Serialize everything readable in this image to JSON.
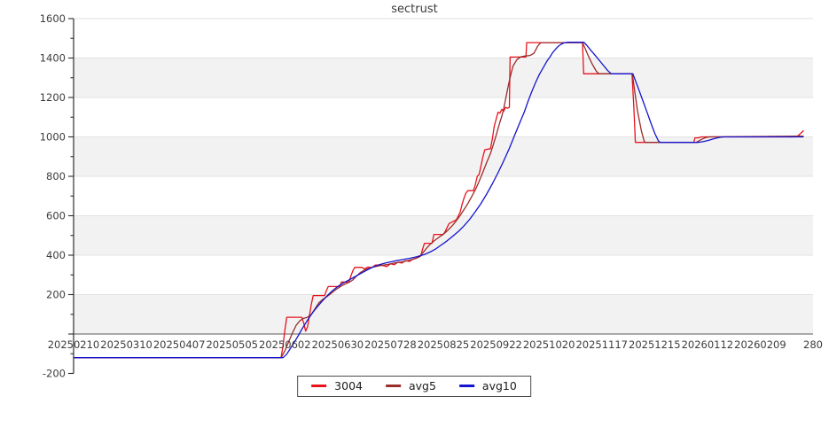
{
  "title": "sectrust",
  "colors": {
    "band": "#f2f2f2",
    "grid": "#e2e2e2",
    "zero_line": "#7a7a7a",
    "axis": "#2e2e2e",
    "tick_text": "#3c3c3c"
  },
  "legend": {
    "items": [
      {
        "label": "3004",
        "color": "#e8131c"
      },
      {
        "label": "avg5",
        "color": "#9a2c2a"
      },
      {
        "label": "avg10",
        "color": "#1414cf"
      }
    ]
  },
  "chart_data": {
    "type": "line",
    "title": "sectrust",
    "legend_position": "bottom-center",
    "x_axis": {
      "unit": "days since first date, 28 days per labeled tick",
      "tick_days": [
        0,
        28,
        56,
        84,
        112,
        140,
        168,
        196,
        224,
        252,
        280,
        308,
        336,
        364,
        392
      ],
      "tick_labels": [
        "20250210",
        "20250310",
        "20250407",
        "20250505",
        "20250602",
        "20250630",
        "20250728",
        "20250825",
        "20250922",
        "20251020",
        "20251117",
        "20251215",
        "20260112",
        "20260209",
        "280"
      ]
    },
    "y_axis": {
      "range": [
        -200,
        1600
      ],
      "major_step": 200,
      "minor_step": 100,
      "labeled_values": [
        1600,
        1400,
        1200,
        1000,
        800,
        600,
        400,
        200,
        -200
      ]
    },
    "gray_bands": [
      [
        0,
        200
      ],
      [
        400,
        600
      ],
      [
        800,
        1000
      ],
      [
        1200,
        1400
      ]
    ],
    "series": [
      {
        "name": "3004",
        "color": "#e8131c",
        "points": [
          [
            0,
            -120
          ],
          [
            110,
            -120
          ],
          [
            111,
            -60
          ],
          [
            112,
            20
          ],
          [
            113,
            85
          ],
          [
            121,
            85
          ],
          [
            122,
            55
          ],
          [
            123,
            15
          ],
          [
            124,
            35
          ],
          [
            125,
            90
          ],
          [
            126,
            150
          ],
          [
            127,
            195
          ],
          [
            133,
            195
          ],
          [
            134,
            220
          ],
          [
            135,
            241
          ],
          [
            141,
            241
          ],
          [
            142,
            264
          ],
          [
            146,
            264
          ],
          [
            147,
            295
          ],
          [
            148,
            320
          ],
          [
            149,
            338
          ],
          [
            153,
            338
          ],
          [
            154,
            330
          ],
          [
            156,
            340
          ],
          [
            158,
            336
          ],
          [
            160,
            350
          ],
          [
            163,
            350
          ],
          [
            166,
            342
          ],
          [
            168,
            356
          ],
          [
            170,
            352
          ],
          [
            172,
            364
          ],
          [
            174,
            360
          ],
          [
            176,
            372
          ],
          [
            178,
            368
          ],
          [
            180,
            380
          ],
          [
            182,
            386
          ],
          [
            184,
            395
          ],
          [
            185,
            430
          ],
          [
            186,
            460
          ],
          [
            190,
            460
          ],
          [
            191,
            505
          ],
          [
            196,
            505
          ],
          [
            197,
            520
          ],
          [
            199,
            560
          ],
          [
            201,
            570
          ],
          [
            203,
            580
          ],
          [
            205,
            620
          ],
          [
            206,
            660
          ],
          [
            207,
            690
          ],
          [
            208,
            715
          ],
          [
            209,
            727
          ],
          [
            212,
            727
          ],
          [
            213,
            760
          ],
          [
            214,
            800
          ],
          [
            215,
            810
          ],
          [
            216,
            855
          ],
          [
            217,
            900
          ],
          [
            218,
            935
          ],
          [
            221,
            940
          ],
          [
            222,
            990
          ],
          [
            223,
            1053
          ],
          [
            224,
            1090
          ],
          [
            225,
            1125
          ],
          [
            226,
            1120
          ],
          [
            227,
            1140
          ],
          [
            228,
            1130
          ],
          [
            229,
            1150
          ],
          [
            230,
            1145
          ],
          [
            231,
            1150
          ],
          [
            231.4,
            1405
          ],
          [
            239.8,
            1405
          ],
          [
            240.2,
            1478
          ],
          [
            269.8,
            1478
          ],
          [
            270.4,
            1320
          ],
          [
            296,
            1320
          ],
          [
            297,
            1150
          ],
          [
            297.8,
            972
          ],
          [
            328.8,
            972
          ],
          [
            329.4,
            995
          ],
          [
            331,
            995
          ],
          [
            333,
            1000
          ],
          [
            382,
            1000
          ],
          [
            384,
            1005
          ],
          [
            387,
            1032
          ]
        ]
      },
      {
        "name": "avg5",
        "color": "#9a2c2a",
        "points": [
          [
            0,
            -120
          ],
          [
            110,
            -120
          ],
          [
            112,
            -85
          ],
          [
            114,
            -40
          ],
          [
            116,
            5
          ],
          [
            118,
            45
          ],
          [
            120,
            68
          ],
          [
            122,
            80
          ],
          [
            124,
            85
          ],
          [
            126,
            100
          ],
          [
            128,
            128
          ],
          [
            130,
            158
          ],
          [
            132,
            175
          ],
          [
            134,
            188
          ],
          [
            136,
            202
          ],
          [
            138,
            218
          ],
          [
            140,
            232
          ],
          [
            142,
            244
          ],
          [
            144,
            254
          ],
          [
            146,
            262
          ],
          [
            148,
            274
          ],
          [
            150,
            294
          ],
          [
            152,
            312
          ],
          [
            155,
            328
          ],
          [
            158,
            338
          ],
          [
            162,
            346
          ],
          [
            166,
            352
          ],
          [
            170,
            360
          ],
          [
            174,
            366
          ],
          [
            178,
            374
          ],
          [
            181,
            382
          ],
          [
            183,
            390
          ],
          [
            185,
            410
          ],
          [
            187,
            434
          ],
          [
            189,
            455
          ],
          [
            191,
            472
          ],
          [
            193,
            486
          ],
          [
            195,
            500
          ],
          [
            197,
            514
          ],
          [
            199,
            532
          ],
          [
            201,
            552
          ],
          [
            203,
            576
          ],
          [
            205,
            602
          ],
          [
            207,
            632
          ],
          [
            209,
            662
          ],
          [
            211,
            696
          ],
          [
            213,
            732
          ],
          [
            215,
            775
          ],
          [
            217,
            822
          ],
          [
            219,
            870
          ],
          [
            221,
            916
          ],
          [
            222,
            945
          ],
          [
            223,
            976
          ],
          [
            224,
            1008
          ],
          [
            225,
            1042
          ],
          [
            226,
            1074
          ],
          [
            227,
            1105
          ],
          [
            228,
            1142
          ],
          [
            229,
            1190
          ],
          [
            230,
            1238
          ],
          [
            231,
            1285
          ],
          [
            232,
            1325
          ],
          [
            233,
            1360
          ],
          [
            235,
            1392
          ],
          [
            237,
            1406
          ],
          [
            239,
            1410
          ],
          [
            242,
            1413
          ],
          [
            244,
            1424
          ],
          [
            245,
            1442
          ],
          [
            246,
            1460
          ],
          [
            247,
            1472
          ],
          [
            248,
            1478
          ],
          [
            269.8,
            1478
          ],
          [
            271,
            1452
          ],
          [
            273,
            1408
          ],
          [
            275,
            1368
          ],
          [
            277,
            1335
          ],
          [
            278.5,
            1320
          ],
          [
            296.2,
            1320
          ],
          [
            297.5,
            1230
          ],
          [
            299,
            1130
          ],
          [
            301,
            1030
          ],
          [
            302.5,
            978
          ],
          [
            303,
            972
          ],
          [
            330,
            972
          ],
          [
            331.5,
            980
          ],
          [
            333,
            988
          ],
          [
            335,
            996
          ],
          [
            337,
            1000
          ],
          [
            387,
            1004
          ]
        ]
      },
      {
        "name": "avg10",
        "color": "#1414cf",
        "points": [
          [
            0,
            -120
          ],
          [
            111,
            -120
          ],
          [
            113,
            -102
          ],
          [
            115,
            -72
          ],
          [
            117,
            -42
          ],
          [
            119,
            -10
          ],
          [
            121,
            24
          ],
          [
            123,
            55
          ],
          [
            125,
            85
          ],
          [
            127,
            112
          ],
          [
            129,
            136
          ],
          [
            131,
            158
          ],
          [
            134,
            190
          ],
          [
            137,
            218
          ],
          [
            140,
            241
          ],
          [
            143,
            259
          ],
          [
            146,
            274
          ],
          [
            149,
            290
          ],
          [
            152,
            306
          ],
          [
            155,
            322
          ],
          [
            158,
            337
          ],
          [
            162,
            352
          ],
          [
            166,
            362
          ],
          [
            170,
            370
          ],
          [
            174,
            377
          ],
          [
            178,
            384
          ],
          [
            182,
            392
          ],
          [
            186,
            403
          ],
          [
            189,
            416
          ],
          [
            192,
            432
          ],
          [
            195,
            452
          ],
          [
            198,
            473
          ],
          [
            201,
            496
          ],
          [
            204,
            520
          ],
          [
            207,
            549
          ],
          [
            210,
            582
          ],
          [
            213,
            621
          ],
          [
            216,
            663
          ],
          [
            219,
            710
          ],
          [
            222,
            762
          ],
          [
            225,
            818
          ],
          [
            228,
            878
          ],
          [
            231,
            942
          ],
          [
            234,
            1012
          ],
          [
            237,
            1082
          ],
          [
            239,
            1128
          ],
          [
            241,
            1182
          ],
          [
            243,
            1232
          ],
          [
            245,
            1278
          ],
          [
            247,
            1318
          ],
          [
            249,
            1352
          ],
          [
            251,
            1385
          ],
          [
            252.5,
            1405
          ],
          [
            254,
            1428
          ],
          [
            255.5,
            1445
          ],
          [
            257,
            1460
          ],
          [
            258.5,
            1470
          ],
          [
            260,
            1477
          ],
          [
            262,
            1480
          ],
          [
            270.5,
            1480
          ],
          [
            272,
            1465
          ],
          [
            274,
            1442
          ],
          [
            277,
            1408
          ],
          [
            280,
            1373
          ],
          [
            283,
            1338
          ],
          [
            285,
            1320
          ],
          [
            296.5,
            1320
          ],
          [
            298,
            1282
          ],
          [
            300,
            1230
          ],
          [
            302,
            1178
          ],
          [
            304,
            1125
          ],
          [
            306,
            1072
          ],
          [
            308,
            1020
          ],
          [
            310,
            980
          ],
          [
            311,
            972
          ],
          [
            331,
            972
          ],
          [
            333,
            975
          ],
          [
            335,
            979
          ],
          [
            337,
            984
          ],
          [
            339,
            989
          ],
          [
            341,
            994
          ],
          [
            343,
            998
          ],
          [
            345,
            1000
          ],
          [
            387,
            1000
          ]
        ]
      }
    ]
  }
}
